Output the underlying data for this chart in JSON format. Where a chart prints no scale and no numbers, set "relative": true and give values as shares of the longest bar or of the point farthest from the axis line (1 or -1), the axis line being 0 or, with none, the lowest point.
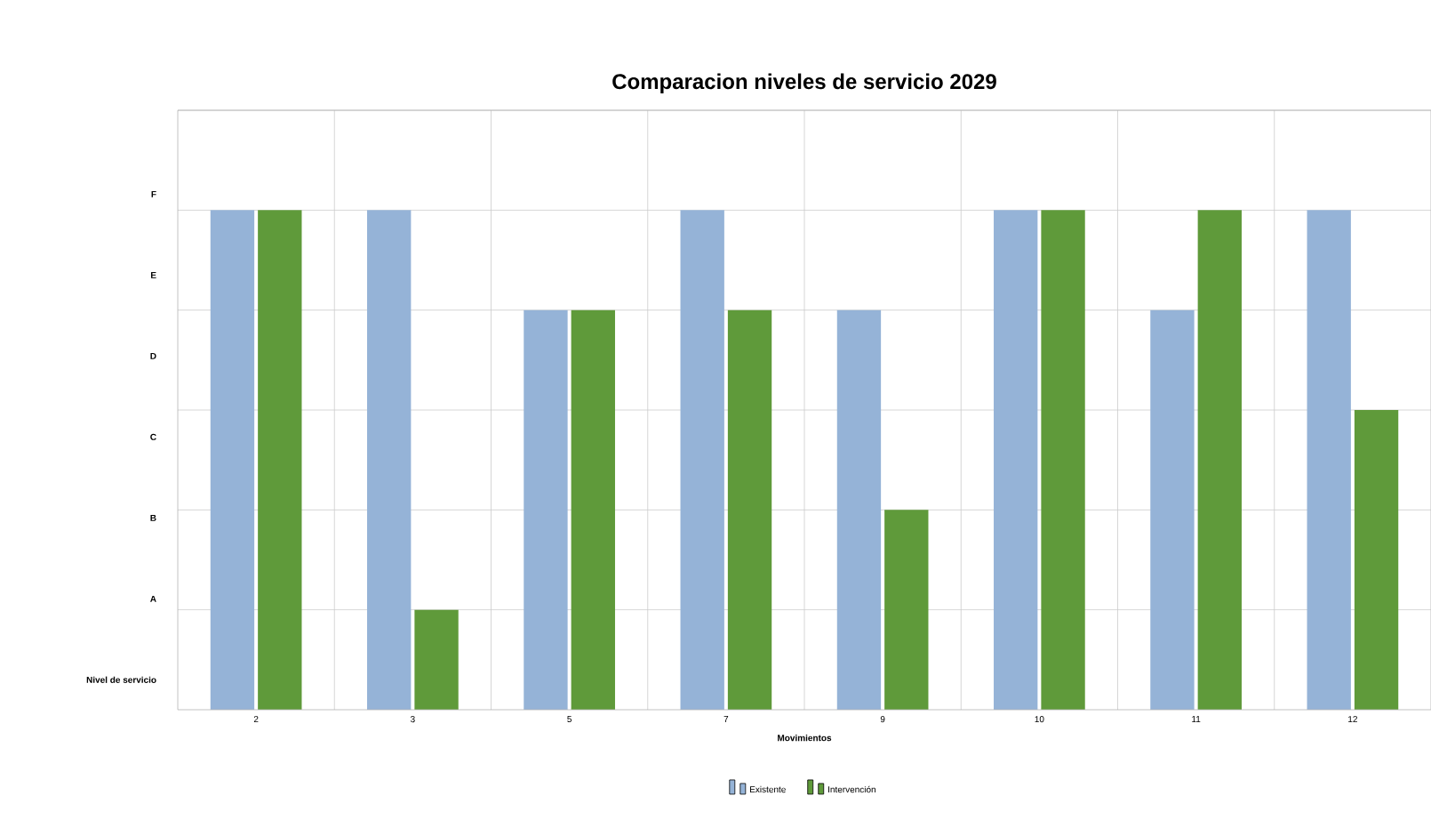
{
  "chart_data": {
    "type": "bar",
    "title": "Comparacion niveles de servicio 2029",
    "xlabel": "Movimientos",
    "categories": [
      "2",
      "3",
      "5",
      "7",
      "9",
      "10",
      "11",
      "12"
    ],
    "series": [
      {
        "name": "Existente",
        "color": "#95b3d7",
        "values": [
          1,
          1,
          0.8,
          1,
          0.8,
          1,
          0.8,
          1
        ]
      },
      {
        "name": "Intervención",
        "color": "#5f9a3a",
        "values": [
          1,
          0.2,
          0.8,
          0.8,
          0.4,
          1,
          1,
          0.6
        ]
      }
    ],
    "relative": true,
    "annotations": [
      "F",
      "E",
      "D",
      "C",
      "B",
      "A",
      "Nivel de servicio"
    ],
    "grid": true,
    "legend": "bottom"
  }
}
